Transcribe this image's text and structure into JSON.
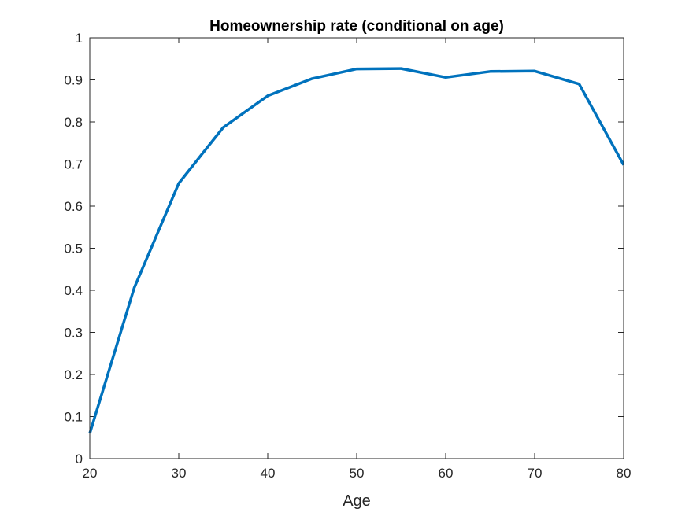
{
  "chart_data": {
    "type": "line",
    "title": "Homeownership rate (conditional on age)",
    "xlabel": "Age",
    "ylabel": "",
    "xlim": [
      20,
      80
    ],
    "ylim": [
      0,
      1
    ],
    "xticks": [
      20,
      30,
      40,
      50,
      60,
      70,
      80
    ],
    "xtick_labels": [
      "20",
      "30",
      "40",
      "50",
      "60",
      "70",
      "80"
    ],
    "yticks": [
      0,
      0.1,
      0.2,
      0.3,
      0.4,
      0.5,
      0.6,
      0.7,
      0.8,
      0.9,
      1
    ],
    "ytick_labels": [
      "0",
      "0.1",
      "0.2",
      "0.3",
      "0.4",
      "0.5",
      "0.6",
      "0.7",
      "0.8",
      "0.9",
      "1"
    ],
    "grid": false,
    "series": [
      {
        "color": "#0072BD",
        "x": [
          20,
          25,
          30,
          35,
          40,
          45,
          50,
          55,
          60,
          65,
          70,
          75,
          80
        ],
        "y": [
          0.06,
          0.406,
          0.654,
          0.787,
          0.862,
          0.903,
          0.926,
          0.927,
          0.906,
          0.92,
          0.921,
          0.89,
          0.698
        ]
      }
    ]
  }
}
